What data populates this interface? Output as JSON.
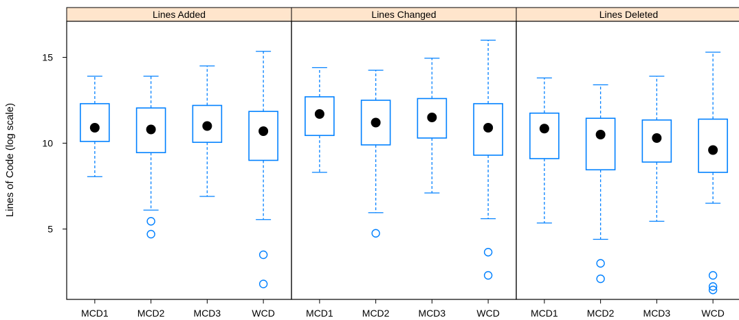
{
  "chart_data": {
    "type": "box",
    "ylabel": "Lines of Code (log scale)",
    "ylim": [
      0.9,
      17.1
    ],
    "yticks": [
      5,
      10,
      15
    ],
    "categories": [
      "MCD1",
      "MCD2",
      "MCD3",
      "WCD"
    ],
    "colors": {
      "box": "#0080ff",
      "median_point": "#000000",
      "strip_fill": "#ffe5cc",
      "frame": "#000000"
    },
    "panels": [
      {
        "title": "Lines Added",
        "boxes": [
          {
            "category": "MCD1",
            "lower_whisker": 8.05,
            "q1": 10.1,
            "median": 10.9,
            "q3": 12.3,
            "upper_whisker": 13.9,
            "outliers": []
          },
          {
            "category": "MCD2",
            "lower_whisker": 6.1,
            "q1": 9.45,
            "median": 10.8,
            "q3": 12.05,
            "upper_whisker": 13.9,
            "outliers": [
              5.45,
              4.7
            ]
          },
          {
            "category": "MCD3",
            "lower_whisker": 6.9,
            "q1": 10.05,
            "median": 11.0,
            "q3": 12.2,
            "upper_whisker": 14.5,
            "outliers": []
          },
          {
            "category": "WCD",
            "lower_whisker": 5.55,
            "q1": 9.0,
            "median": 10.7,
            "q3": 11.85,
            "upper_whisker": 15.35,
            "outliers": [
              3.5,
              1.8
            ]
          }
        ]
      },
      {
        "title": "Lines Changed",
        "boxes": [
          {
            "category": "MCD1",
            "lower_whisker": 8.3,
            "q1": 10.45,
            "median": 11.7,
            "q3": 12.7,
            "upper_whisker": 14.4,
            "outliers": []
          },
          {
            "category": "MCD2",
            "lower_whisker": 5.95,
            "q1": 9.9,
            "median": 11.2,
            "q3": 12.5,
            "upper_whisker": 14.25,
            "outliers": [
              4.75
            ]
          },
          {
            "category": "MCD3",
            "lower_whisker": 7.1,
            "q1": 10.3,
            "median": 11.5,
            "q3": 12.6,
            "upper_whisker": 14.95,
            "outliers": []
          },
          {
            "category": "WCD",
            "lower_whisker": 5.6,
            "q1": 9.3,
            "median": 10.9,
            "q3": 12.3,
            "upper_whisker": 16.0,
            "outliers": [
              3.65,
              2.3
            ]
          }
        ]
      },
      {
        "title": "Lines Deleted",
        "boxes": [
          {
            "category": "MCD1",
            "lower_whisker": 5.35,
            "q1": 9.1,
            "median": 10.85,
            "q3": 11.75,
            "upper_whisker": 13.8,
            "outliers": []
          },
          {
            "category": "MCD2",
            "lower_whisker": 4.4,
            "q1": 8.45,
            "median": 10.5,
            "q3": 11.45,
            "upper_whisker": 13.4,
            "outliers": [
              3.0,
              2.1
            ]
          },
          {
            "category": "MCD3",
            "lower_whisker": 5.45,
            "q1": 8.9,
            "median": 10.3,
            "q3": 11.35,
            "upper_whisker": 13.9,
            "outliers": []
          },
          {
            "category": "WCD",
            "lower_whisker": 6.5,
            "q1": 8.3,
            "median": 9.6,
            "q3": 11.4,
            "upper_whisker": 15.3,
            "outliers": [
              2.3,
              1.65,
              1.45
            ]
          }
        ]
      }
    ]
  }
}
